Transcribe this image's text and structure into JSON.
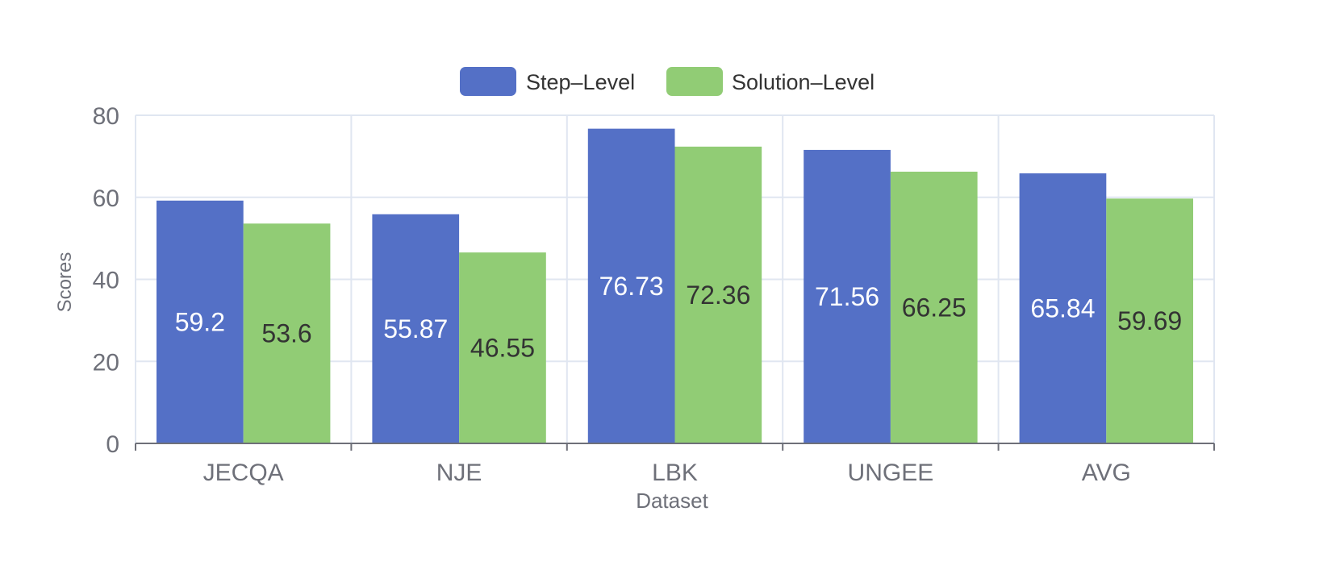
{
  "chart_data": {
    "type": "bar",
    "title": "",
    "xlabel": "Dataset",
    "ylabel": "Scores",
    "ylim": [
      0,
      80
    ],
    "yticks": [
      "0",
      "20",
      "40",
      "60",
      "80"
    ],
    "grid": true,
    "legend_position": "top-center",
    "categories": [
      "JECQA",
      "NJE",
      "LBK",
      "UNGEE",
      "AVG"
    ],
    "series": [
      {
        "name": "Step-Level",
        "color": "#5470c6",
        "label_color": "#ffffff",
        "values": [
          59.2,
          55.87,
          76.73,
          71.56,
          65.84
        ],
        "labels": [
          "59.2",
          "55.87",
          "76.73",
          "71.56",
          "65.84"
        ]
      },
      {
        "name": "Solution-Level",
        "color": "#91cc75",
        "label_color": "#333333",
        "values": [
          53.6,
          46.55,
          72.36,
          66.25,
          59.69
        ],
        "labels": [
          "53.6",
          "46.55",
          "72.36",
          "66.25",
          "59.69"
        ]
      }
    ],
    "legend": [
      "Step–Level",
      "Solution–Level"
    ]
  }
}
